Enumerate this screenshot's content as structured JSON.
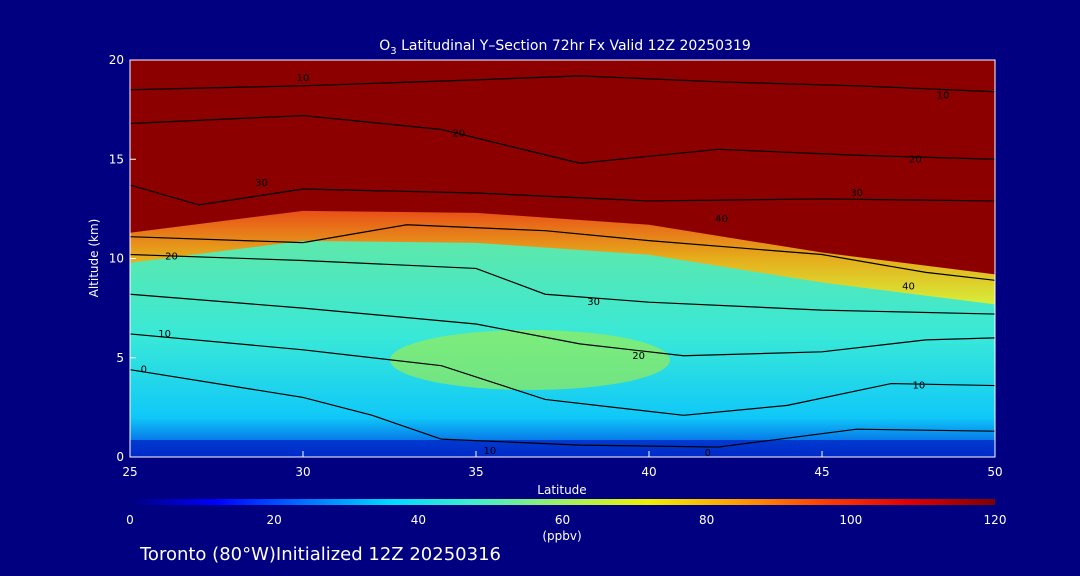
{
  "chart_data": {
    "type": "heatmap",
    "title_main": "O",
    "title_sub": "3",
    "title_rest": " Latitudinal Y–Section 72hr  Fx Valid 12Z 20250319",
    "xlabel": "Latitude",
    "ylabel": "Altitude (km)",
    "xlim": [
      25,
      50
    ],
    "ylim": [
      0,
      20
    ],
    "x_ticks": [
      "25",
      "30",
      "35",
      "40",
      "45",
      "50"
    ],
    "y_ticks": [
      "0",
      "5",
      "10",
      "15",
      "20"
    ],
    "colorbar": {
      "range": [
        0,
        120
      ],
      "ticks": [
        "0",
        "20",
        "40",
        "60",
        "80",
        "100",
        "120"
      ],
      "units": "(ppbv)"
    },
    "footer": "Toronto (80°W)Initialized 12Z 20250316",
    "tropopause_height_km": [
      {
        "lat": 25,
        "alt": 11.3
      },
      {
        "lat": 30,
        "alt": 12.4
      },
      {
        "lat": 35,
        "alt": 12.3
      },
      {
        "lat": 40,
        "alt": 11.7
      },
      {
        "lat": 45,
        "alt": 10.3
      },
      {
        "lat": 50,
        "alt": 9.2
      }
    ],
    "contour_labels": [
      {
        "text": "10",
        "lat": 30,
        "alt": 19.1
      },
      {
        "text": "10",
        "lat": 48.5,
        "alt": 18.2
      },
      {
        "text": "20",
        "lat": 34.5,
        "alt": 16.3
      },
      {
        "text": "20",
        "lat": 47.7,
        "alt": 15.0
      },
      {
        "text": "30",
        "lat": 28.8,
        "alt": 13.8
      },
      {
        "text": "30",
        "lat": 46,
        "alt": 13.3
      },
      {
        "text": "40",
        "lat": 42.1,
        "alt": 12.0
      },
      {
        "text": "40",
        "lat": 47.5,
        "alt": 8.6
      },
      {
        "text": "20",
        "lat": 26.2,
        "alt": 10.1
      },
      {
        "text": "30",
        "lat": 38.4,
        "alt": 7.8
      },
      {
        "text": "10",
        "lat": 26,
        "alt": 6.2
      },
      {
        "text": "20",
        "lat": 39.7,
        "alt": 5.1
      },
      {
        "text": "0",
        "lat": 25.4,
        "alt": 4.4
      },
      {
        "text": "10",
        "lat": 47.8,
        "alt": 3.6
      },
      {
        "text": "10",
        "lat": 35.4,
        "alt": 0.3
      },
      {
        "text": "0",
        "lat": 41.7,
        "alt": 0.2
      }
    ]
  }
}
